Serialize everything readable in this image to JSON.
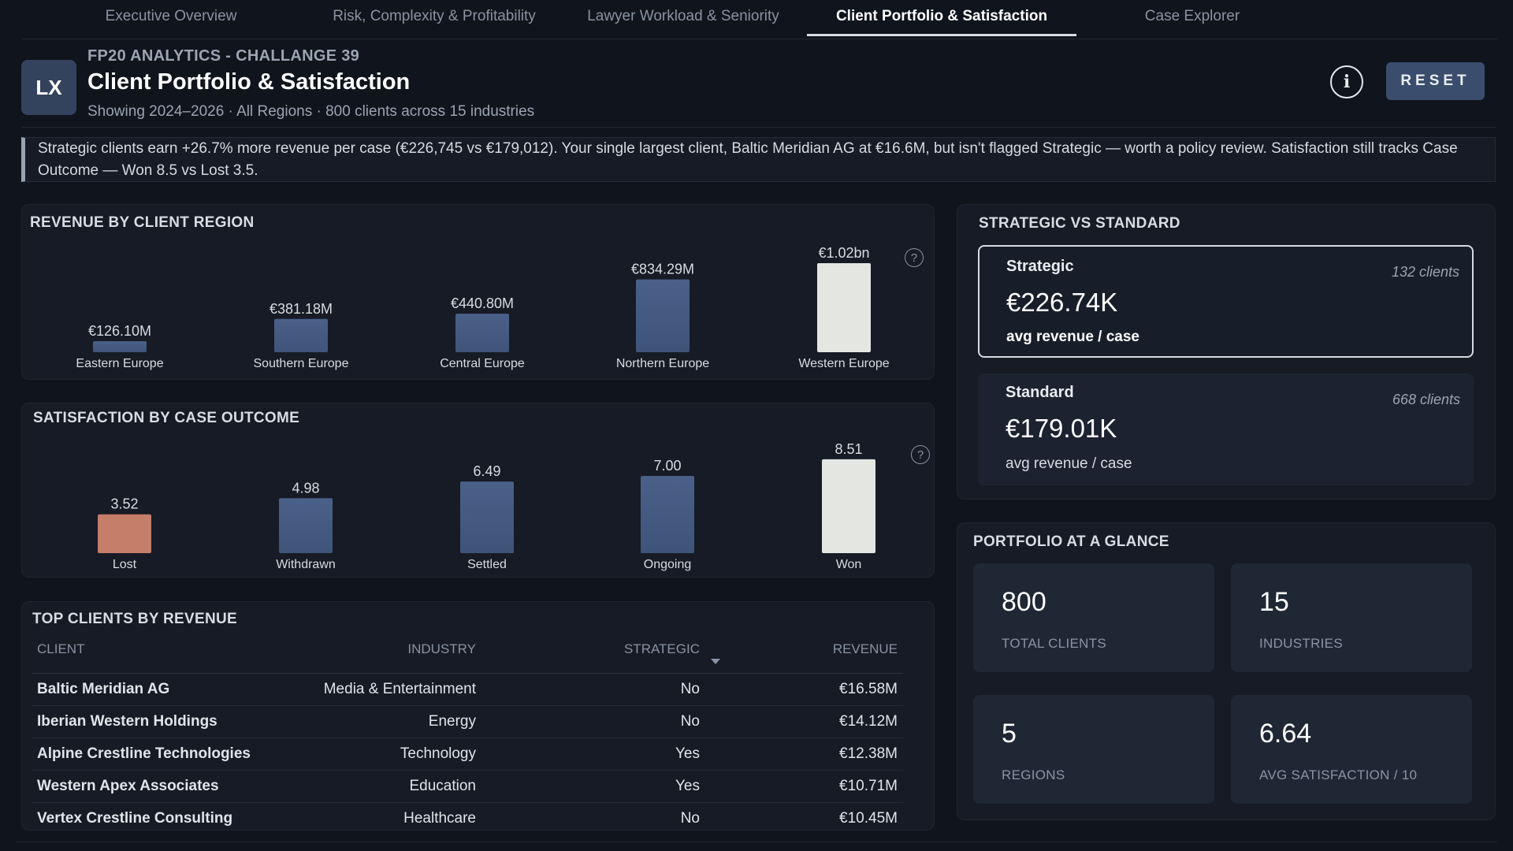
{
  "tabs": [
    {
      "label": "Executive Overview",
      "active": false
    },
    {
      "label": "Risk, Complexity & Profitability",
      "active": false
    },
    {
      "label": "Lawyer Workload & Seniority",
      "active": false
    },
    {
      "label": "Client Portfolio & Satisfaction",
      "active": true
    },
    {
      "label": "Case Explorer",
      "active": false
    }
  ],
  "header": {
    "logo_text": "LX",
    "kicker": "FP20 ANALYTICS - CHALLANGE 39",
    "title": "Client Portfolio & Satisfaction",
    "subtitle": "Showing 2024–2026 · All Regions · 800 clients across 15 industries",
    "info_icon": "info-circle-icon",
    "info_glyph": "i",
    "reset_label": "RESET"
  },
  "insight": "Strategic clients earn +26.7% more revenue per case (€226,745 vs €179,012). Your single largest client, Baltic Meridian AG at €16.6M, but isn't flagged Strategic — worth a policy review. Satisfaction still tracks Case Outcome — Won 8.5 vs Lost 3.5.",
  "help_glyph": "?",
  "revenue_panel": {
    "title": "REVENUE BY CLIENT REGION"
  },
  "satisfaction_panel": {
    "title": "SATISFACTION BY CASE OUTCOME"
  },
  "chart_data": [
    {
      "type": "bar",
      "title": "REVENUE BY CLIENT REGION",
      "categories": [
        "Eastern Europe",
        "Southern Europe",
        "Central Europe",
        "Northern Europe",
        "Western Europe"
      ],
      "values": [
        126.1,
        381.18,
        440.8,
        834.29,
        1020
      ],
      "unit": "€M",
      "labels": [
        "€126.10M",
        "€381.18M",
        "€440.80M",
        "€834.29M",
        "€1.02bn"
      ],
      "ylim": [
        0,
        1020
      ],
      "highlight": "Western Europe",
      "colors": {
        "bar": "#3f5479",
        "bar_top": "#4a6088",
        "highlight": "#e4e6e2"
      }
    },
    {
      "type": "bar",
      "title": "SATISFACTION BY CASE OUTCOME",
      "categories": [
        "Lost",
        "Withdrawn",
        "Settled",
        "Ongoing",
        "Won"
      ],
      "values": [
        3.52,
        4.98,
        6.49,
        7.0,
        8.51
      ],
      "labels": [
        "3.52",
        "4.98",
        "6.49",
        "7.00",
        "8.51"
      ],
      "ylim": [
        0,
        10
      ],
      "highlight": "Won",
      "low_color_category": "Lost",
      "colors": {
        "bar": "#3f5479",
        "bar_top": "#4a6088",
        "highlight": "#e4e6e2",
        "low": "#c47e6a"
      }
    }
  ],
  "clients_table": {
    "title": "TOP CLIENTS BY REVENUE",
    "columns": [
      "CLIENT",
      "INDUSTRY",
      "STRATEGIC",
      "REVENUE"
    ],
    "sort_icon": "sort-caret-down-icon",
    "rows": [
      {
        "client": "Baltic Meridian AG",
        "industry": "Media & Entertainment",
        "strategic": "No",
        "revenue": "€16.58M"
      },
      {
        "client": "Iberian Western Holdings",
        "industry": "Energy",
        "strategic": "No",
        "revenue": "€14.12M"
      },
      {
        "client": "Alpine Crestline Technologies",
        "industry": "Technology",
        "strategic": "Yes",
        "revenue": "€12.38M"
      },
      {
        "client": "Western Apex Associates",
        "industry": "Education",
        "strategic": "Yes",
        "revenue": "€10.71M"
      },
      {
        "client": "Vertex Crestline Consulting",
        "industry": "Healthcare",
        "strategic": "No",
        "revenue": "€10.45M"
      }
    ]
  },
  "strategic_panel": {
    "title": "STRATEGIC VS STANDARD",
    "strategic": {
      "name": "Strategic",
      "count": "132 clients",
      "value": "€226.74K",
      "metric": "avg revenue / case"
    },
    "standard": {
      "name": "Standard",
      "count": "668 clients",
      "value": "€179.01K",
      "metric": "avg revenue / case"
    }
  },
  "glance_panel": {
    "title": "PORTFOLIO AT A GLANCE",
    "kpis": [
      {
        "value": "800",
        "label": "TOTAL CLIENTS"
      },
      {
        "value": "15",
        "label": "INDUSTRIES"
      },
      {
        "value": "5",
        "label": "REGIONS"
      },
      {
        "value": "6.64",
        "label": "AVG SATISFACTION / 10"
      }
    ]
  }
}
